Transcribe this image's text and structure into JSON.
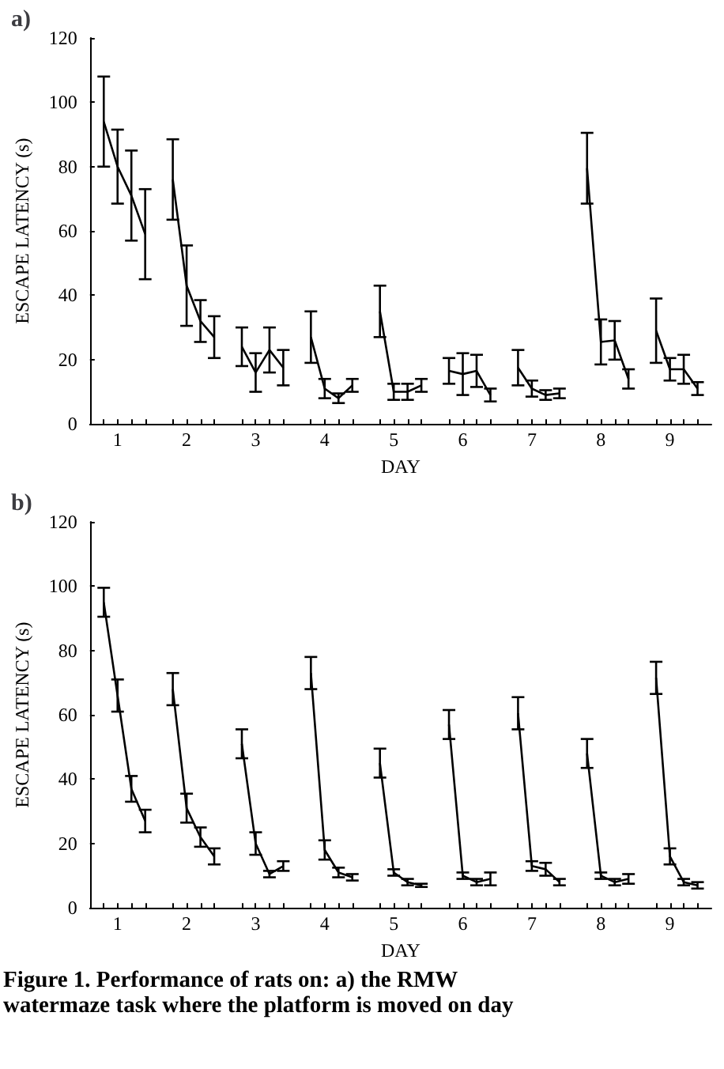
{
  "chart_data": [
    {
      "type": "line",
      "title": "a)",
      "xlabel": "DAY",
      "ylabel": "ESCAPE LATENCY (s)",
      "xlim": [
        0.6,
        9.6
      ],
      "ylim": [
        0,
        120
      ],
      "yticks": [
        0,
        20,
        40,
        60,
        80,
        100,
        120
      ],
      "xticks": [
        {
          "value": 0.8,
          "label": null
        },
        1,
        {
          "value": 1.2,
          "label": null
        },
        {
          "value": 1.4,
          "label": null
        },
        {
          "value": 1.8,
          "label": null
        },
        2,
        {
          "value": 2.2,
          "label": null
        },
        {
          "value": 2.4,
          "label": null
        },
        {
          "value": 2.8,
          "label": null
        },
        3,
        {
          "value": 3.2,
          "label": null
        },
        {
          "value": 3.4,
          "label": null
        },
        {
          "value": 3.8,
          "label": null
        },
        4,
        {
          "value": 4.2,
          "label": null
        },
        {
          "value": 4.4,
          "label": null
        },
        {
          "value": 4.8,
          "label": null
        },
        5,
        {
          "value": 5.2,
          "label": null
        },
        {
          "value": 5.4,
          "label": null
        },
        {
          "value": 5.8,
          "label": null
        },
        6,
        {
          "value": 6.2,
          "label": null
        },
        {
          "value": 6.4,
          "label": null
        },
        {
          "value": 6.8,
          "label": null
        },
        7,
        {
          "value": 7.2,
          "label": null
        },
        {
          "value": 7.4,
          "label": null
        },
        {
          "value": 7.8,
          "label": null
        },
        8,
        {
          "value": 8.2,
          "label": null
        },
        {
          "value": 8.4,
          "label": null
        },
        {
          "value": 8.8,
          "label": null
        },
        9,
        {
          "value": 9.2,
          "label": null
        },
        {
          "value": 9.4,
          "label": null
        }
      ],
      "grid": false,
      "marker": "none",
      "line_style": "solid",
      "series": [
        {
          "color": "#000000",
          "x": [
            0.8,
            1,
            1.2,
            1.4
          ],
          "values": [
            94,
            80,
            71,
            59
          ],
          "errors": [
            14,
            11.5,
            14,
            14
          ]
        },
        {
          "color": "#000000",
          "x": [
            1.8,
            2,
            2.2,
            2.4
          ],
          "values": [
            76,
            43,
            32,
            27
          ],
          "errors": [
            12.5,
            12.5,
            6.5,
            6.5
          ]
        },
        {
          "color": "#000000",
          "x": [
            2.8,
            3,
            3.2,
            3.4
          ],
          "values": [
            24,
            16,
            23,
            17.5
          ],
          "errors": [
            6,
            6,
            7,
            5.5
          ]
        },
        {
          "color": "#000000",
          "x": [
            3.8,
            4,
            4.2,
            4.4
          ],
          "values": [
            27,
            11,
            8,
            12
          ],
          "errors": [
            8,
            3,
            1.5,
            2
          ]
        },
        {
          "color": "#000000",
          "x": [
            4.8,
            5,
            5.2,
            5.4
          ],
          "values": [
            35,
            10,
            10,
            12
          ],
          "errors": [
            8,
            2.5,
            2.5,
            2
          ]
        },
        {
          "color": "#000000",
          "x": [
            5.8,
            6,
            6.2,
            6.4
          ],
          "values": [
            16.5,
            15.5,
            16.5,
            9
          ],
          "errors": [
            4,
            6.5,
            5,
            2
          ]
        },
        {
          "color": "#000000",
          "x": [
            6.8,
            7,
            7.2,
            7.4
          ],
          "values": [
            17.5,
            11,
            9,
            9.5
          ],
          "errors": [
            5.5,
            2.5,
            1.5,
            1.5
          ]
        },
        {
          "color": "#000000",
          "x": [
            7.8,
            8,
            8.2,
            8.4
          ],
          "values": [
            79.5,
            25.5,
            26,
            14
          ],
          "errors": [
            11,
            7,
            6,
            3
          ]
        },
        {
          "color": "#000000",
          "x": [
            8.8,
            9,
            9.2,
            9.4
          ],
          "values": [
            29,
            17,
            17,
            11
          ],
          "errors": [
            10,
            3.5,
            4.5,
            2
          ]
        }
      ]
    },
    {
      "type": "line",
      "title": "b)",
      "xlabel": "DAY",
      "ylabel": "ESCAPE LATENCY (s)",
      "xlim": [
        0.6,
        9.6
      ],
      "ylim": [
        0,
        120
      ],
      "yticks": [
        0,
        20,
        40,
        60,
        80,
        100,
        120
      ],
      "xticks": [
        {
          "value": 0.8,
          "label": null
        },
        1,
        {
          "value": 1.2,
          "label": null
        },
        {
          "value": 1.4,
          "label": null
        },
        {
          "value": 1.8,
          "label": null
        },
        2,
        {
          "value": 2.2,
          "label": null
        },
        {
          "value": 2.4,
          "label": null
        },
        {
          "value": 2.8,
          "label": null
        },
        3,
        {
          "value": 3.2,
          "label": null
        },
        {
          "value": 3.4,
          "label": null
        },
        {
          "value": 3.8,
          "label": null
        },
        4,
        {
          "value": 4.2,
          "label": null
        },
        {
          "value": 4.4,
          "label": null
        },
        {
          "value": 4.8,
          "label": null
        },
        5,
        {
          "value": 5.2,
          "label": null
        },
        {
          "value": 5.4,
          "label": null
        },
        {
          "value": 5.8,
          "label": null
        },
        6,
        {
          "value": 6.2,
          "label": null
        },
        {
          "value": 6.4,
          "label": null
        },
        {
          "value": 6.8,
          "label": null
        },
        7,
        {
          "value": 7.2,
          "label": null
        },
        {
          "value": 7.4,
          "label": null
        },
        {
          "value": 7.8,
          "label": null
        },
        8,
        {
          "value": 8.2,
          "label": null
        },
        {
          "value": 8.4,
          "label": null
        },
        {
          "value": 8.8,
          "label": null
        },
        9,
        {
          "value": 9.2,
          "label": null
        },
        {
          "value": 9.4,
          "label": null
        }
      ],
      "grid": false,
      "marker": "none",
      "line_style": "solid",
      "annotations": [
        "Figure 1.  Performance of rats on: a) the RMW",
        "watermaze task where the platform is moved on day"
      ],
      "series": [
        {
          "color": "#000000",
          "x": [
            0.8,
            1,
            1.2,
            1.4
          ],
          "values": [
            95,
            66,
            37,
            27
          ],
          "errors": [
            4.5,
            5,
            4,
            3.5
          ]
        },
        {
          "color": "#000000",
          "x": [
            1.8,
            2,
            2.2,
            2.4
          ],
          "values": [
            68,
            31,
            22,
            16
          ],
          "errors": [
            5,
            4.5,
            3,
            2.5
          ]
        },
        {
          "color": "#000000",
          "x": [
            2.8,
            3,
            3.2,
            3.4
          ],
          "values": [
            51,
            20,
            10.5,
            13
          ],
          "errors": [
            4.5,
            3.5,
            1,
            1.5
          ]
        },
        {
          "color": "#000000",
          "x": [
            3.8,
            4,
            4.2,
            4.4
          ],
          "values": [
            73,
            18,
            11,
            9.5
          ],
          "errors": [
            5,
            3,
            1.5,
            1
          ]
        },
        {
          "color": "#000000",
          "x": [
            4.8,
            5,
            5.2,
            5.4
          ],
          "values": [
            45,
            11,
            8,
            7
          ],
          "errors": [
            4.5,
            1,
            1,
            0.5
          ]
        },
        {
          "color": "#000000",
          "x": [
            5.8,
            6,
            6.2,
            6.4
          ],
          "values": [
            57,
            10,
            8,
            9
          ],
          "errors": [
            4.5,
            1,
            1,
            2
          ]
        },
        {
          "color": "#000000",
          "x": [
            6.8,
            7,
            7.2,
            7.4
          ],
          "values": [
            60.5,
            13,
            12,
            8
          ],
          "errors": [
            5,
            1.5,
            2,
            1
          ]
        },
        {
          "color": "#000000",
          "x": [
            7.8,
            8,
            8.2,
            8.4
          ],
          "values": [
            48,
            10,
            8,
            9
          ],
          "errors": [
            4.5,
            1,
            1,
            1.5
          ]
        },
        {
          "color": "#000000",
          "x": [
            8.8,
            9,
            9.2,
            9.4
          ],
          "values": [
            71.5,
            16,
            8,
            7
          ],
          "errors": [
            5,
            2.5,
            1,
            1
          ]
        }
      ]
    }
  ]
}
